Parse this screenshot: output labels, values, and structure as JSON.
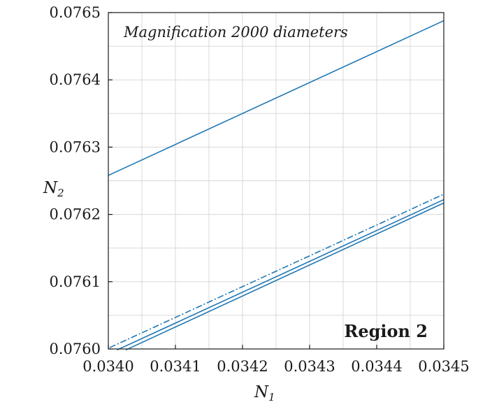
{
  "chart_data": {
    "type": "line",
    "title": "",
    "xlabel": "N",
    "xlabel_sub": "1",
    "ylabel": "N",
    "ylabel_sub": "2",
    "xlim": [
      0.034,
      0.0345
    ],
    "ylim": [
      0.076,
      0.0765
    ],
    "xticks": [
      "0.0340",
      "0.0341",
      "0.0342",
      "0.0343",
      "0.0344",
      "0.0345"
    ],
    "yticks": [
      "0.0760",
      "0.0761",
      "0.0762",
      "0.0763",
      "0.0764",
      "0.0765"
    ],
    "grid": true,
    "minor_grid": true,
    "series_color": "#1f77b4",
    "series": [
      {
        "x": [
          0.034,
          0.0345
        ],
        "y": [
          0.076258,
          0.076488
        ]
      },
      {
        "x": [
          0.034002,
          0.0345
        ],
        "y": [
          0.076002,
          0.07623
        ],
        "style": "dashdot"
      },
      {
        "x": [
          0.034013,
          0.0345
        ],
        "y": [
          0.0759985,
          0.076222
        ]
      },
      {
        "x": [
          0.034026,
          0.0345
        ],
        "y": [
          0.0759985,
          0.076217
        ]
      }
    ],
    "annotations": [
      "Magnification 2000 diameters",
      "Region 2"
    ]
  }
}
